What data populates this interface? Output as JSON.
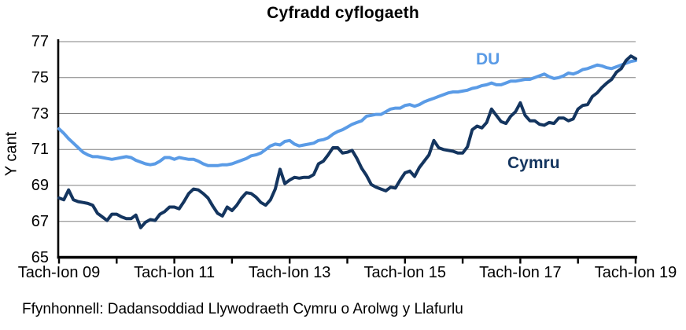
{
  "chart": {
    "title": "Cyfradd cyflogaeth",
    "y_axis_title": "Y cant",
    "source_note": "Ffynhonnell: Dadansoddiad Llywodraeth Cymru o Arolwg y Llafurlu",
    "colors": {
      "du": "#5A9BE6",
      "cymru": "#14355F",
      "grid": "#808080",
      "axis": "#000000",
      "background": "#ffffff"
    }
  },
  "chart_data": {
    "type": "line",
    "title": "Cyfradd cyflogaeth",
    "xlabel": "",
    "ylabel": "Y cant",
    "ylim": [
      65,
      77
    ],
    "yticks": [
      65,
      67,
      69,
      71,
      73,
      75,
      77
    ],
    "xtick_labels": [
      "Tach-Ion 09",
      "Tach-Ion 11",
      "Tach-Ion 13",
      "Tach-Ion 15",
      "Tach-Ion 17",
      "Tach-Ion 19"
    ],
    "grid": "horizontal",
    "legend_position": "inline-labels-on-chart",
    "series": [
      {
        "name": "DU",
        "color": "#5A9BE6",
        "values": [
          72.15,
          71.9,
          71.6,
          71.35,
          71.1,
          70.85,
          70.7,
          70.6,
          70.6,
          70.55,
          70.5,
          70.45,
          70.5,
          70.55,
          70.6,
          70.55,
          70.4,
          70.3,
          70.2,
          70.15,
          70.2,
          70.35,
          70.55,
          70.55,
          70.45,
          70.55,
          70.5,
          70.45,
          70.45,
          70.35,
          70.2,
          70.1,
          70.1,
          70.1,
          70.15,
          70.15,
          70.2,
          70.3,
          70.4,
          70.5,
          70.65,
          70.7,
          70.8,
          71.0,
          71.2,
          71.3,
          71.25,
          71.45,
          71.5,
          71.3,
          71.2,
          71.25,
          71.3,
          71.35,
          71.5,
          71.55,
          71.65,
          71.85,
          72.0,
          72.1,
          72.25,
          72.4,
          72.5,
          72.6,
          72.85,
          72.9,
          72.95,
          72.95,
          73.1,
          73.25,
          73.3,
          73.3,
          73.45,
          73.5,
          73.4,
          73.5,
          73.65,
          73.75,
          73.85,
          73.95,
          74.05,
          74.15,
          74.2,
          74.2,
          74.25,
          74.3,
          74.4,
          74.45,
          74.55,
          74.6,
          74.7,
          74.6,
          74.6,
          74.7,
          74.8,
          74.8,
          74.85,
          74.9,
          74.9,
          75.0,
          75.1,
          75.2,
          75.05,
          74.95,
          75.0,
          75.1,
          75.25,
          75.2,
          75.3,
          75.45,
          75.5,
          75.6,
          75.7,
          75.65,
          75.55,
          75.5,
          75.6,
          75.7,
          75.8,
          75.9,
          75.95
        ]
      },
      {
        "name": "Cymru",
        "color": "#14355F",
        "values": [
          68.3,
          68.2,
          68.75,
          68.2,
          68.1,
          68.05,
          68.0,
          67.9,
          67.45,
          67.25,
          67.05,
          67.4,
          67.4,
          67.25,
          67.15,
          67.15,
          67.35,
          66.65,
          66.95,
          67.1,
          67.05,
          67.4,
          67.55,
          67.8,
          67.8,
          67.7,
          68.1,
          68.55,
          68.8,
          68.75,
          68.55,
          68.3,
          67.85,
          67.45,
          67.3,
          67.8,
          67.6,
          67.9,
          68.3,
          68.6,
          68.55,
          68.35,
          68.05,
          67.9,
          68.2,
          68.8,
          69.9,
          69.1,
          69.3,
          69.45,
          69.4,
          69.45,
          69.45,
          69.6,
          70.2,
          70.35,
          70.7,
          71.1,
          71.1,
          70.8,
          70.85,
          70.95,
          70.5,
          69.95,
          69.55,
          69.05,
          68.9,
          68.8,
          68.7,
          68.9,
          68.85,
          69.3,
          69.7,
          69.8,
          69.5,
          70.0,
          70.35,
          70.7,
          71.5,
          71.1,
          71.0,
          70.95,
          70.9,
          70.8,
          70.8,
          71.15,
          72.1,
          72.3,
          72.2,
          72.5,
          73.25,
          72.9,
          72.55,
          72.45,
          72.85,
          73.1,
          73.6,
          72.9,
          72.6,
          72.6,
          72.4,
          72.35,
          72.5,
          72.45,
          72.75,
          72.75,
          72.6,
          72.7,
          73.25,
          73.45,
          73.5,
          73.95,
          74.15,
          74.45,
          74.7,
          74.9,
          75.3,
          75.5,
          75.95,
          76.2,
          76.05
        ]
      }
    ]
  }
}
